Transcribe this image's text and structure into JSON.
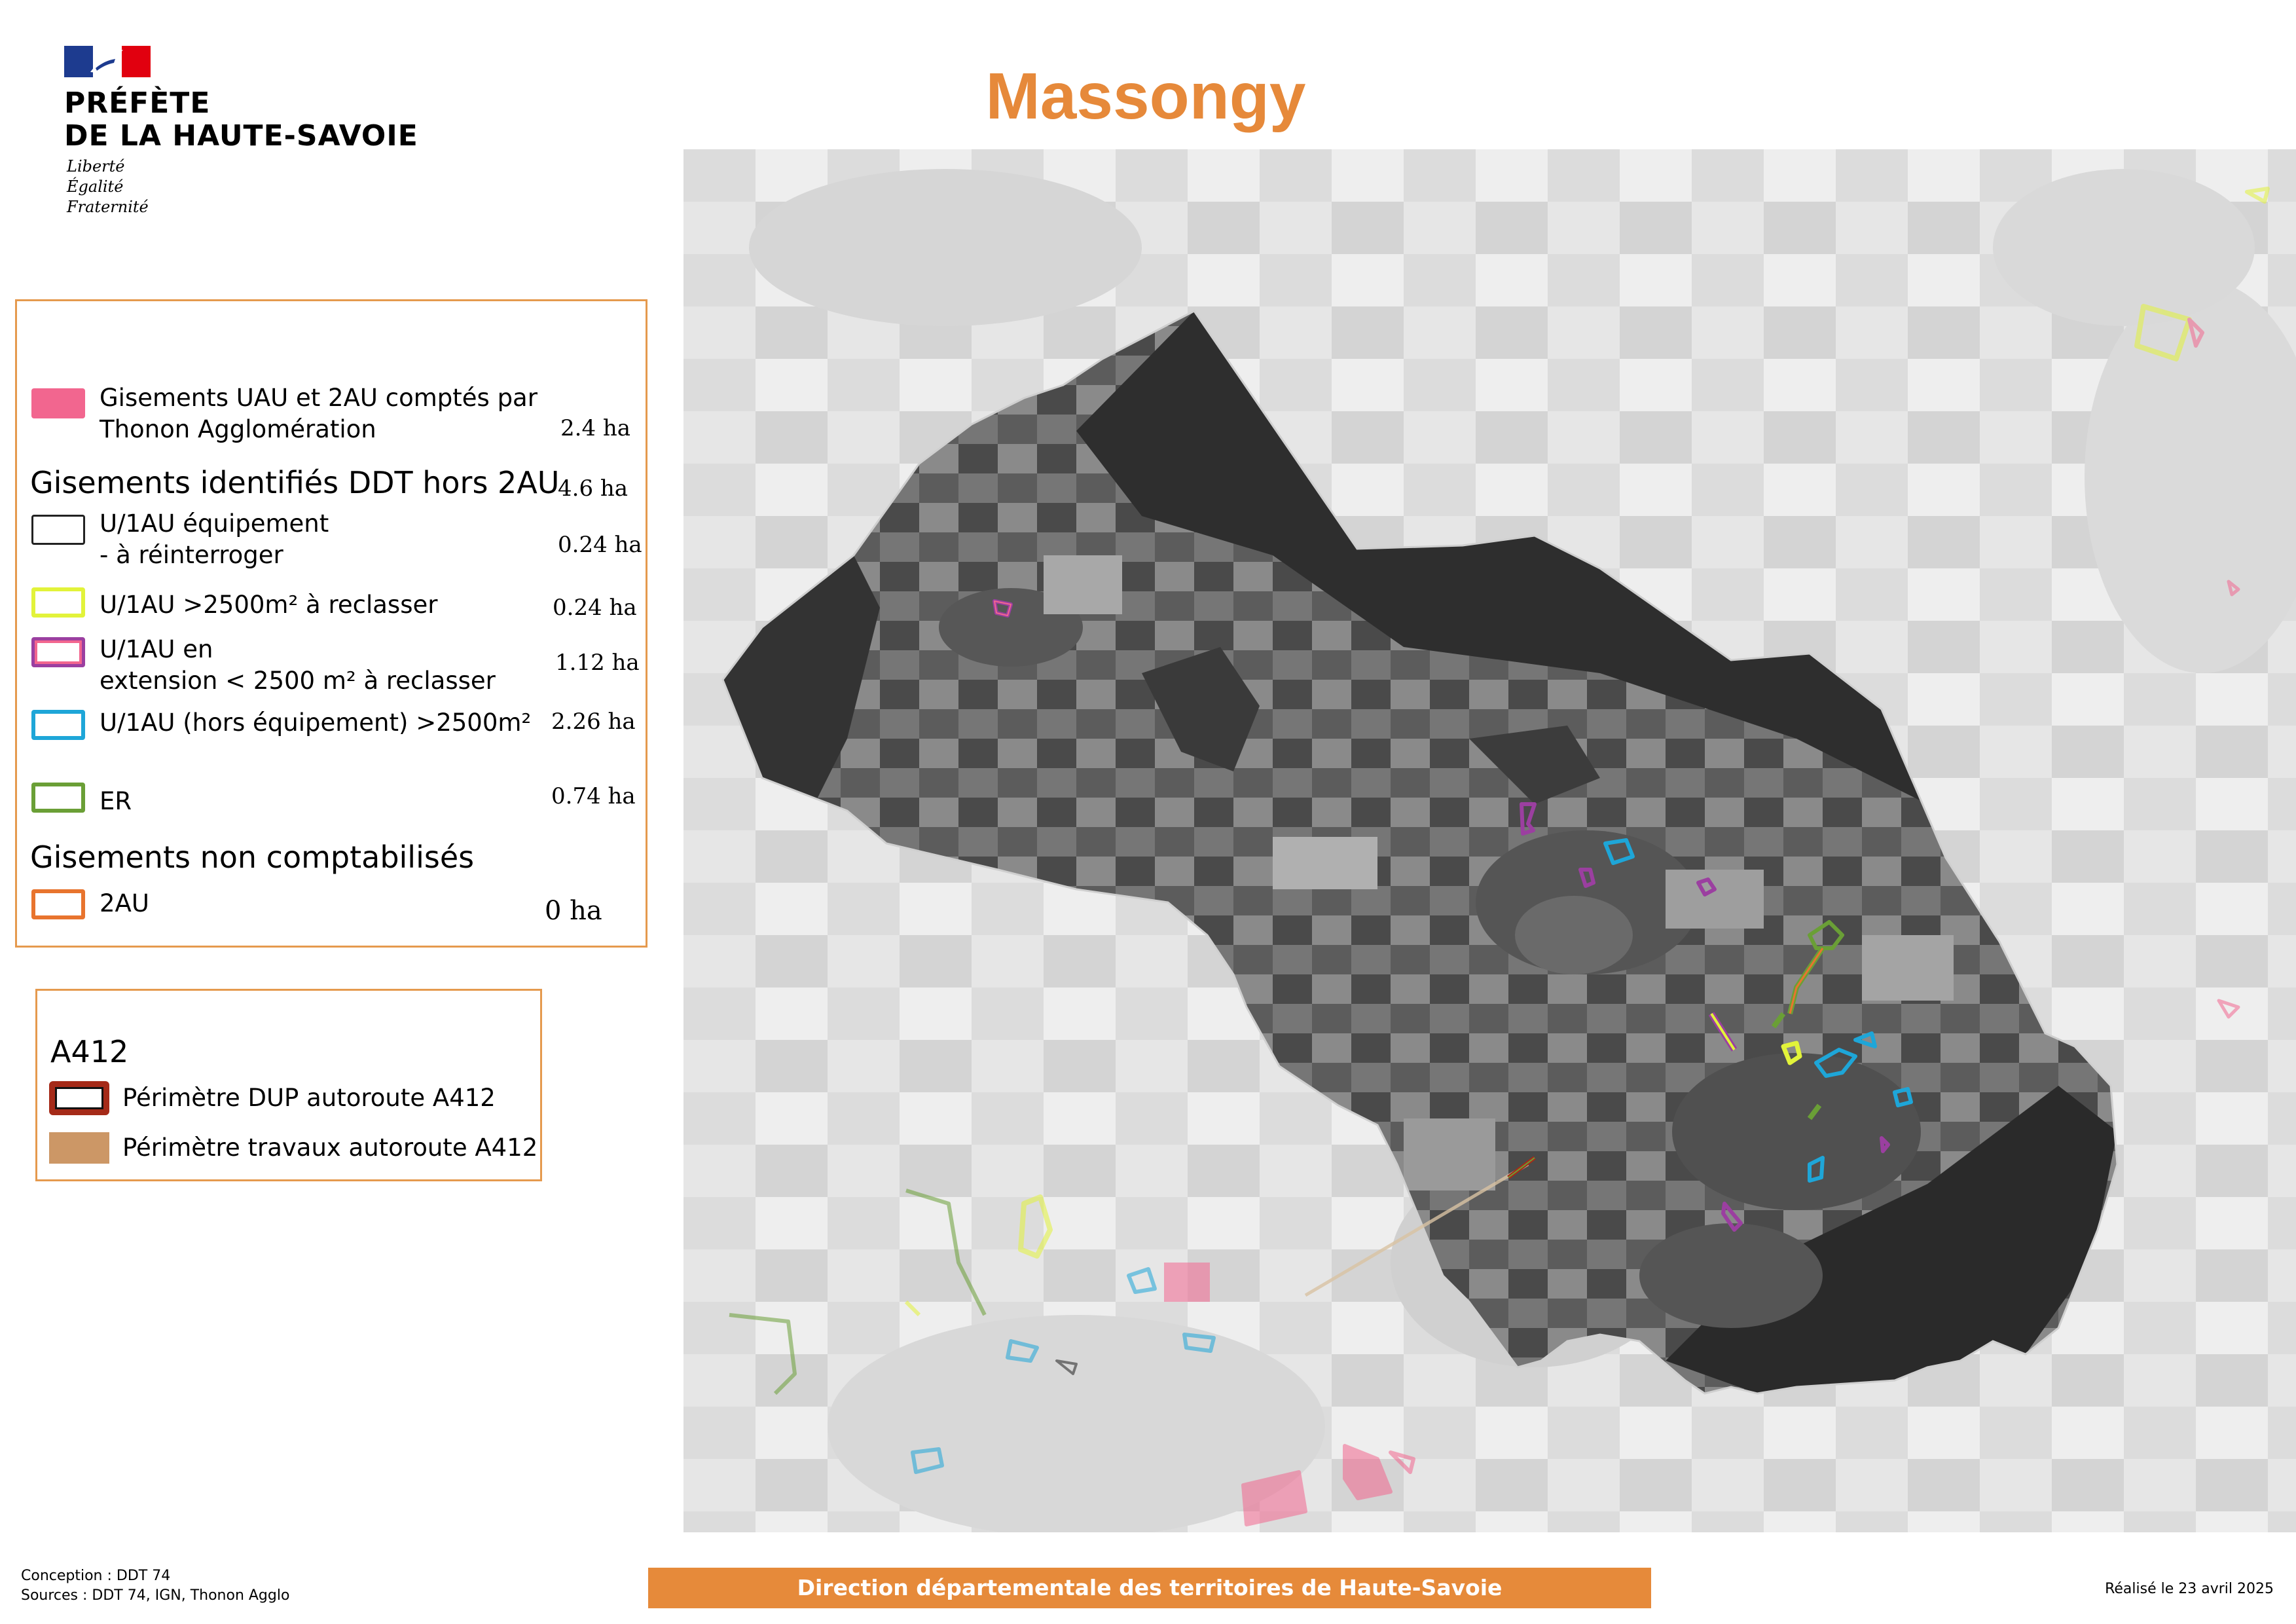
{
  "header": {
    "prefecture_line1": "PRÉFÈTE",
    "prefecture_line2": "DE LA HAUTE-SAVOIE",
    "motto": [
      "Liberté",
      "Égalité",
      "Fraternité"
    ],
    "title": "Massongy",
    "title_color": "#e6893a"
  },
  "legend": {
    "items": [
      {
        "label_lines": [
          "Gisements UAU et 2AU comptés par",
          "Thonon Agglomération"
        ],
        "value": "2.4 ha",
        "swatch": "fill",
        "color": "#f2668f"
      },
      {
        "heading": "Gisements identifiés DDT hors 2AU",
        "value": "4.6 ha"
      },
      {
        "label_lines": [
          "U/1AU équipement",
          "- à réinterroger"
        ],
        "value": "0.24 ha",
        "swatch": "outline",
        "color": "#222222"
      },
      {
        "label_lines": [
          "U/1AU >2500m²  à reclasser"
        ],
        "value": "0.24 ha",
        "swatch": "outline",
        "color": "#e2f33a"
      },
      {
        "label_lines": [
          "U/1AU en",
          "extension  < 2500 m² à reclasser"
        ],
        "value": "1.12 ha",
        "swatch": "double-outline",
        "color": "#9b3fa0",
        "color_inner": "#f2668f"
      },
      {
        "label_lines": [
          "U/1AU (hors équipement) >2500m²"
        ],
        "value": "2.26 ha",
        "swatch": "outline",
        "color": "#1ea6d8"
      },
      {
        "label_lines": [
          "ER"
        ],
        "value": "0.74 ha",
        "swatch": "outline",
        "color": "#6a9f36"
      },
      {
        "heading": "Gisements non comptabilisés"
      },
      {
        "label_lines": [
          "2AU"
        ],
        "value": "0 ha",
        "swatch": "outline",
        "color": "#e8742e"
      }
    ]
  },
  "legend_a412": {
    "title": "A412",
    "items": [
      {
        "label": "Périmètre DUP autoroute A412",
        "swatch": "thick-outline",
        "color": "#a52a18"
      },
      {
        "label": "Périmètre travaux autoroute A412",
        "swatch": "fill",
        "color": "#cc9766"
      }
    ]
  },
  "footer": {
    "conception": "Conception : DDT 74",
    "sources": "Sources : DDT 74, IGN, Thonon Agglo",
    "banner": "Direction départementale des territoires de Haute-Savoie",
    "made_on": "Réalisé le 23 avril 2025",
    "banner_color": "#e68a3a"
  }
}
